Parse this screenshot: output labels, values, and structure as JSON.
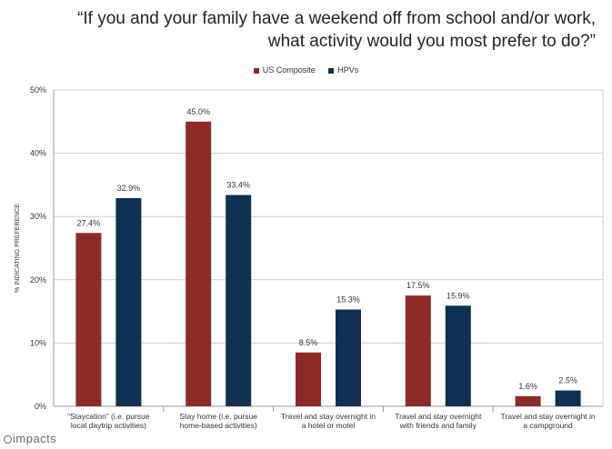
{
  "title_lines": [
    "“If you and your family have a weekend off from school and/or work,",
    "what activity would you most prefer to do?”"
  ],
  "logo": {
    "text": "impacts",
    "icon": "circle-logo-icon"
  },
  "chart_data": {
    "type": "bar",
    "ylabel": "% INDICATING PREFERENCE",
    "ylim": [
      0,
      50
    ],
    "yticks": [
      "0%",
      "10%",
      "20%",
      "30%",
      "40%",
      "50%"
    ],
    "ytick_values": [
      0,
      10,
      20,
      30,
      40,
      50
    ],
    "grid": true,
    "legend_position": "top-center",
    "categories": [
      [
        "“Staycation” (i.e. pursue",
        "local daytrip activities)"
      ],
      [
        "Stay home (i.e. pursue",
        "home-based activities)"
      ],
      [
        "Travel and stay overnight in",
        "a hotel or motel"
      ],
      [
        "Travel and stay overnight",
        "with friends and family"
      ],
      [
        "Travel and stay overnight in",
        "a campground"
      ]
    ],
    "series": [
      {
        "name": "US Composite",
        "color": "#8b2a27",
        "values": [
          27.4,
          45.0,
          8.5,
          17.5,
          1.6
        ],
        "labels": [
          "27.4%",
          "45.0%",
          "8.5%",
          "17.5%",
          "1.6%"
        ]
      },
      {
        "name": "HPVs",
        "color": "#0f3050",
        "values": [
          32.9,
          33.4,
          15.3,
          15.9,
          2.5
        ],
        "labels": [
          "32.9%",
          "33.4%",
          "15.3%",
          "15.9%",
          "2.5%"
        ]
      }
    ]
  }
}
